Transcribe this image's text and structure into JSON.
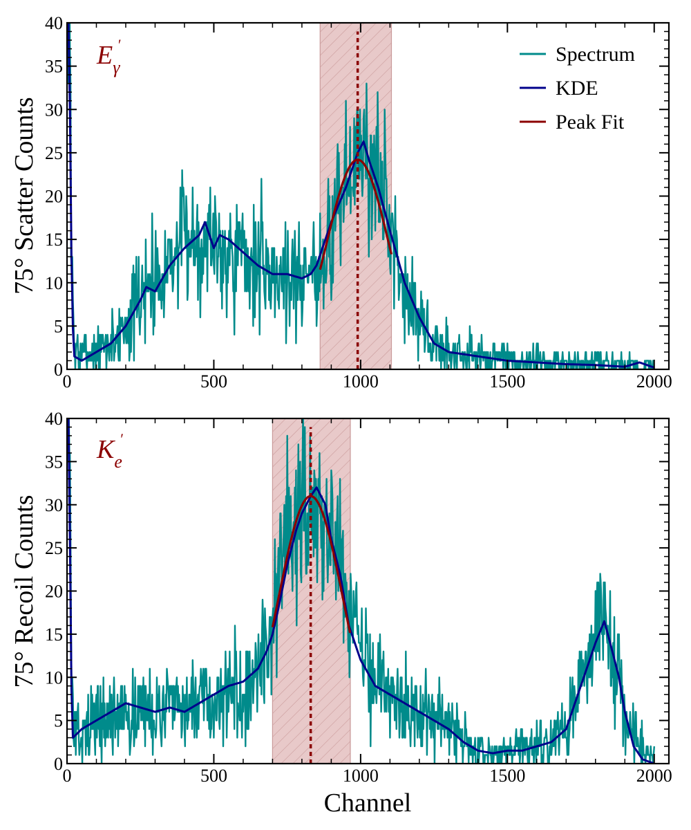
{
  "figure": {
    "xlabel": "Channel",
    "colors": {
      "spectrum": "#008b8b",
      "kde": "#00008b",
      "fit": "#8b0000",
      "band_fill": "#e2bcbc",
      "band_hatch": "#c99a9a"
    }
  },
  "legend": {
    "placement": "top-right of top panel",
    "entries": [
      {
        "label": "Spectrum",
        "color": "#008b8b"
      },
      {
        "label": "KDE",
        "color": "#00008b"
      },
      {
        "label": "Peak Fit",
        "color": "#8b0000"
      }
    ]
  },
  "chart_data": [
    {
      "type": "line",
      "label": {
        "main": "E",
        "sub": "γ",
        "sup": "′"
      },
      "ylabel": "75° Scatter Counts",
      "xlabel": "",
      "xlim": [
        0,
        2050
      ],
      "ylim": [
        0,
        40
      ],
      "xticks": [
        0,
        500,
        1000,
        1500,
        2000
      ],
      "yticks": [
        0,
        5,
        10,
        15,
        20,
        25,
        30,
        35,
        40
      ],
      "peak_center": 990,
      "band": [
        862,
        1105
      ],
      "spectrum_seed": 7,
      "spectrum_envelope": [
        [
          0,
          40
        ],
        [
          10,
          40
        ],
        [
          15,
          15
        ],
        [
          25,
          2
        ],
        [
          50,
          1.5
        ],
        [
          100,
          2
        ],
        [
          150,
          3
        ],
        [
          200,
          5
        ],
        [
          250,
          8
        ],
        [
          300,
          11
        ],
        [
          350,
          13
        ],
        [
          400,
          15
        ],
        [
          450,
          15.5
        ],
        [
          500,
          15
        ],
        [
          550,
          14
        ],
        [
          600,
          13
        ],
        [
          650,
          12
        ],
        [
          700,
          11
        ],
        [
          750,
          11
        ],
        [
          800,
          11
        ],
        [
          850,
          11.5
        ],
        [
          900,
          15
        ],
        [
          950,
          22
        ],
        [
          1000,
          25
        ],
        [
          1050,
          23
        ],
        [
          1100,
          17
        ],
        [
          1150,
          10
        ],
        [
          1200,
          5
        ],
        [
          1250,
          3
        ],
        [
          1300,
          2
        ],
        [
          1400,
          1.5
        ],
        [
          1500,
          1
        ],
        [
          1700,
          0.7
        ],
        [
          1900,
          0.4
        ],
        [
          2000,
          0.3
        ]
      ],
      "kde": [
        [
          0,
          40
        ],
        [
          8,
          40
        ],
        [
          12,
          20
        ],
        [
          18,
          6
        ],
        [
          25,
          1.5
        ],
        [
          50,
          1
        ],
        [
          100,
          2
        ],
        [
          150,
          3
        ],
        [
          200,
          5
        ],
        [
          250,
          8
        ],
        [
          270,
          9.5
        ],
        [
          300,
          9
        ],
        [
          350,
          12
        ],
        [
          400,
          14
        ],
        [
          450,
          15.5
        ],
        [
          470,
          17
        ],
        [
          500,
          14
        ],
        [
          520,
          15.5
        ],
        [
          550,
          15
        ],
        [
          600,
          13.5
        ],
        [
          650,
          12
        ],
        [
          700,
          11
        ],
        [
          750,
          11
        ],
        [
          800,
          10.5
        ],
        [
          830,
          11
        ],
        [
          850,
          12
        ],
        [
          900,
          17
        ],
        [
          950,
          21
        ],
        [
          990,
          25
        ],
        [
          1010,
          26.3
        ],
        [
          1030,
          24
        ],
        [
          1060,
          21
        ],
        [
          1100,
          16
        ],
        [
          1150,
          10
        ],
        [
          1200,
          6
        ],
        [
          1250,
          3
        ],
        [
          1300,
          2
        ],
        [
          1400,
          1.5
        ],
        [
          1500,
          1
        ],
        [
          1600,
          0.8
        ],
        [
          1700,
          0.6
        ],
        [
          1800,
          0.5
        ],
        [
          1900,
          0.3
        ],
        [
          1950,
          0.8
        ],
        [
          2000,
          0.2
        ]
      ],
      "fit": {
        "amplitude": 24.2,
        "center": 990,
        "sigma": 105,
        "range": [
          862,
          1105
        ]
      }
    },
    {
      "type": "line",
      "label": {
        "main": "K",
        "sub": "e",
        "sup": "′"
      },
      "ylabel": "75° Recoil Counts",
      "xlabel": "Channel",
      "xlim": [
        0,
        2050
      ],
      "ylim": [
        0,
        40
      ],
      "xticks": [
        0,
        500,
        1000,
        1500,
        2000
      ],
      "yticks": [
        0,
        5,
        10,
        15,
        20,
        25,
        30,
        35,
        40
      ],
      "peak_center": 830,
      "band": [
        700,
        965
      ],
      "spectrum_seed": 13,
      "spectrum_envelope": [
        [
          0,
          40
        ],
        [
          10,
          40
        ],
        [
          15,
          8
        ],
        [
          30,
          3
        ],
        [
          100,
          5
        ],
        [
          200,
          6
        ],
        [
          300,
          6
        ],
        [
          400,
          6.5
        ],
        [
          500,
          7
        ],
        [
          550,
          8
        ],
        [
          600,
          9
        ],
        [
          650,
          11
        ],
        [
          700,
          16
        ],
        [
          750,
          24
        ],
        [
          800,
          29
        ],
        [
          830,
          31
        ],
        [
          860,
          30
        ],
        [
          900,
          26
        ],
        [
          950,
          19
        ],
        [
          1000,
          13
        ],
        [
          1050,
          10
        ],
        [
          1100,
          8
        ],
        [
          1150,
          7
        ],
        [
          1200,
          6
        ],
        [
          1250,
          5.5
        ],
        [
          1300,
          4
        ],
        [
          1350,
          2.5
        ],
        [
          1400,
          1.5
        ],
        [
          1500,
          1.5
        ],
        [
          1600,
          2
        ],
        [
          1650,
          2.5
        ],
        [
          1700,
          4
        ],
        [
          1750,
          9
        ],
        [
          1800,
          15
        ],
        [
          1830,
          17
        ],
        [
          1860,
          13
        ],
        [
          1900,
          6
        ],
        [
          1950,
          2
        ],
        [
          2000,
          0.5
        ]
      ],
      "kde": [
        [
          0,
          40
        ],
        [
          8,
          40
        ],
        [
          12,
          12
        ],
        [
          20,
          3
        ],
        [
          50,
          4
        ],
        [
          100,
          5
        ],
        [
          150,
          6
        ],
        [
          200,
          7
        ],
        [
          250,
          6.5
        ],
        [
          300,
          6
        ],
        [
          350,
          6.5
        ],
        [
          400,
          6
        ],
        [
          450,
          7
        ],
        [
          500,
          8
        ],
        [
          550,
          9
        ],
        [
          600,
          9.5
        ],
        [
          650,
          11
        ],
        [
          680,
          13
        ],
        [
          700,
          15
        ],
        [
          720,
          18
        ],
        [
          750,
          23
        ],
        [
          780,
          27
        ],
        [
          800,
          29
        ],
        [
          830,
          31
        ],
        [
          850,
          32
        ],
        [
          880,
          30
        ],
        [
          900,
          26
        ],
        [
          930,
          22
        ],
        [
          960,
          16
        ],
        [
          1000,
          12
        ],
        [
          1050,
          9
        ],
        [
          1100,
          8
        ],
        [
          1150,
          7
        ],
        [
          1200,
          6
        ],
        [
          1250,
          5
        ],
        [
          1300,
          4
        ],
        [
          1350,
          2.5
        ],
        [
          1400,
          1.5
        ],
        [
          1450,
          1.2
        ],
        [
          1500,
          1.5
        ],
        [
          1550,
          1.5
        ],
        [
          1600,
          2
        ],
        [
          1650,
          2.5
        ],
        [
          1700,
          4
        ],
        [
          1750,
          9
        ],
        [
          1780,
          12
        ],
        [
          1800,
          14
        ],
        [
          1830,
          16.5
        ],
        [
          1850,
          14
        ],
        [
          1880,
          10
        ],
        [
          1900,
          6
        ],
        [
          1930,
          2
        ],
        [
          1960,
          0.5
        ],
        [
          2000,
          0
        ]
      ],
      "fit": {
        "amplitude": 31,
        "center": 830,
        "sigma": 112,
        "range": [
          700,
          965
        ]
      }
    }
  ]
}
